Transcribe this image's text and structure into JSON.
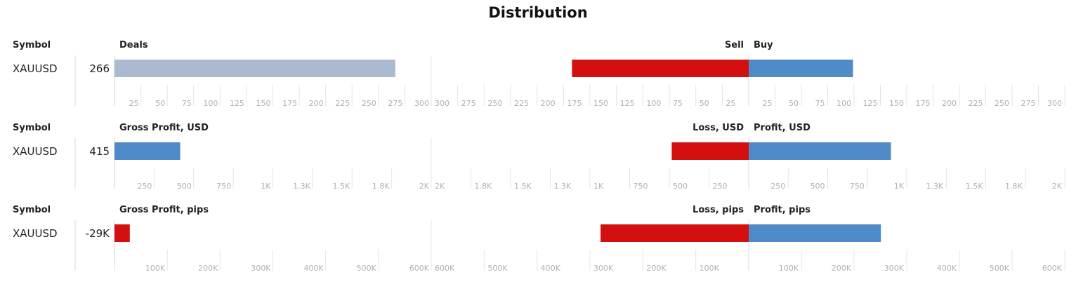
{
  "title": "Distribution",
  "colors": {
    "neutral": "#abb9d1",
    "positive": "#4f8ac9",
    "negative": "#d40f0f",
    "grid": "#e4e4e4",
    "tick": "#b0b0b0"
  },
  "chart_data": [
    {
      "type": "bar",
      "symbol_header": "Symbol",
      "symbol": "XAUUSD",
      "total_label": "266",
      "left": {
        "header": "Deals",
        "value": 266,
        "max": 300,
        "ticks": [
          25,
          50,
          75,
          100,
          125,
          150,
          175,
          200,
          225,
          250,
          275,
          300
        ],
        "tick_labels": [
          "25",
          "50",
          "75",
          "100",
          "125",
          "150",
          "175",
          "200",
          "225",
          "250",
          "275",
          "300"
        ],
        "color": "neutral"
      },
      "negative": {
        "header": "Sell",
        "value": 167,
        "max": 300,
        "ticks": [
          25,
          50,
          75,
          100,
          125,
          150,
          175,
          200,
          225,
          250,
          275,
          300
        ],
        "tick_labels": [
          "25",
          "50",
          "75",
          "100",
          "125",
          "150",
          "175",
          "200",
          "225",
          "250",
          "275",
          "300"
        ],
        "color": "negative"
      },
      "positive": {
        "header": "Buy",
        "value": 99,
        "max": 300,
        "ticks": [
          25,
          50,
          75,
          100,
          125,
          150,
          175,
          200,
          225,
          250,
          275,
          300
        ],
        "tick_labels": [
          "25",
          "50",
          "75",
          "100",
          "125",
          "150",
          "175",
          "200",
          "225",
          "250",
          "275",
          "300"
        ],
        "color": "positive"
      }
    },
    {
      "type": "bar",
      "symbol_header": "Symbol",
      "symbol": "XAUUSD",
      "total_label": "415",
      "left": {
        "header": "Gross Profit, USD",
        "value": 415,
        "max": 2000,
        "ticks": [
          250,
          500,
          750,
          1000,
          1250,
          1500,
          1750,
          2000
        ],
        "tick_labels": [
          "250",
          "500",
          "750",
          "1K",
          "1.3K",
          "1.5K",
          "1.8K",
          "2K"
        ],
        "color": "positive"
      },
      "negative": {
        "header": "Loss, USD",
        "value": 485,
        "max": 2000,
        "ticks": [
          250,
          500,
          750,
          1000,
          1250,
          1500,
          1750,
          2000
        ],
        "tick_labels": [
          "250",
          "500",
          "750",
          "1K",
          "1.3K",
          "1.5K",
          "1.8K",
          "2K"
        ],
        "color": "negative"
      },
      "positive": {
        "header": "Profit, USD",
        "value": 900,
        "max": 2000,
        "ticks": [
          250,
          500,
          750,
          1000,
          1250,
          1500,
          1750,
          2000
        ],
        "tick_labels": [
          "250",
          "500",
          "750",
          "1K",
          "1.3K",
          "1.5K",
          "1.8K",
          "2K"
        ],
        "color": "positive"
      }
    },
    {
      "type": "bar",
      "symbol_header": "Symbol",
      "symbol": "XAUUSD",
      "total_label": "-29K",
      "left": {
        "header": "Gross Profit, pips",
        "value": 29000,
        "max": 600000,
        "ticks": [
          100000,
          200000,
          300000,
          400000,
          500000,
          600000
        ],
        "tick_labels": [
          "100K",
          "200K",
          "300K",
          "400K",
          "500K",
          "600K"
        ],
        "color": "negative"
      },
      "negative": {
        "header": "Loss, pips",
        "value": 280000,
        "max": 600000,
        "ticks": [
          100000,
          200000,
          300000,
          400000,
          500000,
          600000
        ],
        "tick_labels": [
          "100K",
          "200K",
          "300K",
          "400K",
          "500K",
          "600K"
        ],
        "color": "negative"
      },
      "positive": {
        "header": "Profit, pips",
        "value": 251000,
        "max": 600000,
        "ticks": [
          100000,
          200000,
          300000,
          400000,
          500000,
          600000
        ],
        "tick_labels": [
          "100K",
          "200K",
          "300K",
          "400K",
          "500K",
          "600K"
        ],
        "color": "positive"
      }
    }
  ]
}
